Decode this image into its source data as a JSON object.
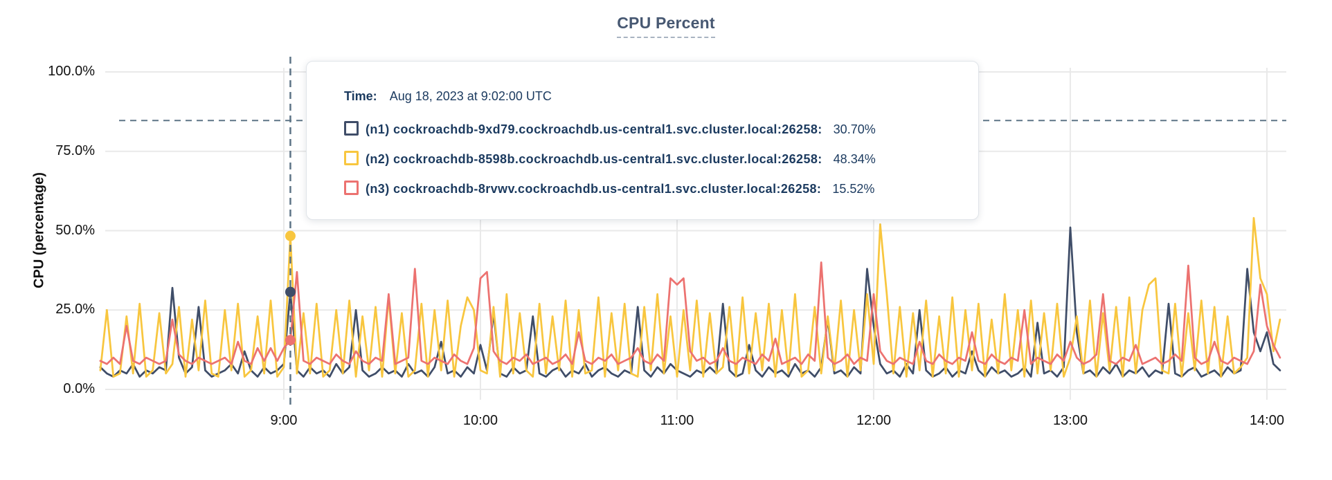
{
  "header": {
    "title": "CPU Percent"
  },
  "colors": {
    "title": "#475872",
    "tooltip_text": "#1b3a5f",
    "grid": "#e9e9e9",
    "dashed_guides": "#5d7486",
    "series_n1": "#3f4d68",
    "series_n2": "#f8c63f",
    "series_n3": "#ec7270"
  },
  "tooltip": {
    "time_label": "Time:",
    "time_value": "Aug 18, 2023 at 9:02:00 UTC",
    "rows": [
      {
        "label": "(n1) cockroachdb-9xd79.cockroachdb.us-central1.svc.cluster.local:26258:",
        "value": "30.70%",
        "color": "#3f4d68"
      },
      {
        "label": "(n2) cockroachdb-8598b.cockroachdb.us-central1.svc.cluster.local:26258:",
        "value": "48.34%",
        "color": "#f8c63f"
      },
      {
        "label": "(n3) cockroachdb-8rvwv.cockroachdb.us-central1.svc.cluster.local:26258:",
        "value": "15.52%",
        "color": "#ec7270"
      }
    ]
  },
  "chart_data": {
    "type": "line",
    "title": "CPU Percent",
    "ylabel": "CPU (percentage)",
    "xlabel": "",
    "ylim": [
      0,
      100
    ],
    "grid": true,
    "threshold_value": 84.7,
    "y_ticks": [
      {
        "value": 100,
        "label": "100.0%"
      },
      {
        "value": 75,
        "label": "75.0%"
      },
      {
        "value": 50,
        "label": "50.0%"
      },
      {
        "value": 25,
        "label": "25.0%"
      },
      {
        "value": 0,
        "label": "0.0%"
      }
    ],
    "x_ticks": [
      {
        "index": 28,
        "label": "9:00"
      },
      {
        "index": 58,
        "label": "10:00"
      },
      {
        "index": 88,
        "label": "11:00"
      },
      {
        "index": 118,
        "label": "12:00"
      },
      {
        "index": 148,
        "label": "13:00"
      },
      {
        "index": 178,
        "label": "14:00"
      }
    ],
    "hover": {
      "index": 29,
      "time_label": "Aug 18, 2023 at 9:02:00 UTC",
      "values": {
        "n1": 30.7,
        "n2": 48.34,
        "n3": 15.52
      }
    },
    "series": [
      {
        "id": "n1",
        "name": "(n1) cockroachdb-9xd79.cockroachdb.us-central1.svc.cluster.local:26258",
        "color": "#3f4d68",
        "values": [
          7,
          5,
          4,
          6,
          5,
          8,
          4,
          6,
          5,
          7,
          6,
          32,
          10,
          5,
          7,
          26,
          6,
          4,
          5,
          6,
          8,
          5,
          12,
          6,
          4,
          7,
          5,
          6,
          8,
          30.7,
          6,
          4,
          7,
          5,
          6,
          4,
          8,
          5,
          7,
          25,
          6,
          4,
          5,
          7,
          5,
          6,
          4,
          8,
          5,
          6,
          4,
          7,
          15,
          5,
          6,
          4,
          7,
          5,
          14,
          6,
          24,
          5,
          4,
          7,
          5,
          6,
          23,
          5,
          4,
          6,
          7,
          4,
          6,
          5,
          8,
          4,
          6,
          7,
          5,
          4,
          6,
          5,
          26,
          6,
          4,
          7,
          5,
          8,
          6,
          5,
          4,
          6,
          5,
          7,
          5,
          27,
          6,
          4,
          5,
          14,
          6,
          4,
          7,
          5,
          6,
          4,
          8,
          5,
          6,
          4,
          7,
          22,
          5,
          6,
          4,
          7,
          5,
          38,
          20,
          8,
          5,
          6,
          4,
          8,
          5,
          25,
          6,
          4,
          5,
          7,
          4,
          6,
          5,
          12,
          6,
          4,
          7,
          5,
          6,
          4,
          5,
          7,
          4,
          21,
          5,
          6,
          4,
          7,
          51,
          18,
          5,
          6,
          4,
          7,
          5,
          8,
          4,
          6,
          5,
          7,
          4,
          6,
          5,
          27,
          5,
          4,
          6,
          7,
          4,
          5,
          6,
          4,
          7,
          5,
          6,
          38,
          18,
          12,
          18,
          8,
          6
        ]
      },
      {
        "id": "n2",
        "name": "(n2) cockroachdb-8598b.cockroachdb.us-central1.svc.cluster.local:26258",
        "color": "#f8c63f",
        "values": [
          6,
          25,
          4,
          5,
          23,
          5,
          27,
          4,
          6,
          24,
          5,
          8,
          26,
          4,
          22,
          6,
          28,
          5,
          4,
          25,
          6,
          27,
          4,
          6,
          23,
          5,
          28,
          4,
          7,
          48.34,
          5,
          24,
          5,
          27,
          4,
          6,
          25,
          5,
          28,
          4,
          23,
          6,
          26,
          4,
          29,
          5,
          24,
          4,
          6,
          27,
          4,
          25,
          6,
          28,
          4,
          20,
          29,
          25,
          6,
          5,
          26,
          4,
          30,
          5,
          24,
          6,
          4,
          27,
          5,
          23,
          6,
          28,
          4,
          25,
          5,
          6,
          29,
          4,
          24,
          6,
          27,
          5,
          4,
          26,
          6,
          30,
          5,
          23,
          4,
          25,
          6,
          28,
          4,
          24,
          5,
          7,
          26,
          4,
          29,
          5,
          24,
          6,
          27,
          4,
          25,
          5,
          30,
          4,
          6,
          26,
          5,
          23,
          6,
          28,
          4,
          25,
          6,
          30,
          8,
          52,
          30,
          5,
          26,
          4,
          24,
          6,
          28,
          4,
          23,
          5,
          29,
          4,
          25,
          6,
          27,
          4,
          22,
          5,
          30,
          6,
          25,
          4,
          28,
          5,
          24,
          6,
          27,
          4,
          10,
          23,
          5,
          28,
          4,
          24,
          6,
          26,
          4,
          29,
          5,
          25,
          33,
          35,
          6,
          5,
          27,
          4,
          24,
          6,
          28,
          5,
          26,
          4,
          23,
          5,
          7,
          10,
          54,
          35,
          30,
          12,
          22
        ]
      },
      {
        "id": "n3",
        "name": "(n3) cockroachdb-8rvwv.cockroachdb.us-central1.svc.cluster.local:26258",
        "color": "#ec7270",
        "values": [
          9,
          8,
          10,
          8,
          20,
          9,
          8,
          10,
          9,
          8,
          9,
          22,
          11,
          9,
          8,
          10,
          9,
          8,
          9,
          10,
          8,
          15,
          9,
          8,
          13,
          9,
          13,
          9,
          13,
          15.52,
          37,
          9,
          8,
          10,
          9,
          8,
          11,
          9,
          8,
          12,
          9,
          8,
          10,
          9,
          30,
          8,
          9,
          10,
          38,
          9,
          8,
          10,
          9,
          8,
          11,
          9,
          8,
          13,
          35,
          37,
          12,
          9,
          8,
          10,
          9,
          11,
          8,
          9,
          10,
          8,
          9,
          11,
          8,
          18,
          9,
          8,
          10,
          9,
          11,
          8,
          9,
          10,
          13,
          9,
          8,
          11,
          9,
          35,
          33,
          35,
          12,
          9,
          10,
          8,
          9,
          13,
          9,
          8,
          10,
          9,
          8,
          11,
          9,
          16,
          8,
          9,
          10,
          8,
          11,
          9,
          40,
          10,
          8,
          9,
          11,
          8,
          10,
          9,
          30,
          12,
          9,
          8,
          10,
          9,
          8,
          15,
          9,
          8,
          11,
          9,
          8,
          10,
          9,
          18,
          9,
          8,
          11,
          9,
          8,
          10,
          9,
          25,
          8,
          10,
          9,
          8,
          11,
          9,
          15,
          10,
          8,
          9,
          11,
          30,
          9,
          8,
          10,
          9,
          14,
          8,
          9,
          10,
          8,
          9,
          11,
          9,
          39,
          10,
          8,
          9,
          15,
          9,
          8,
          10,
          9,
          8,
          12,
          33,
          20,
          14,
          10
        ]
      }
    ]
  }
}
